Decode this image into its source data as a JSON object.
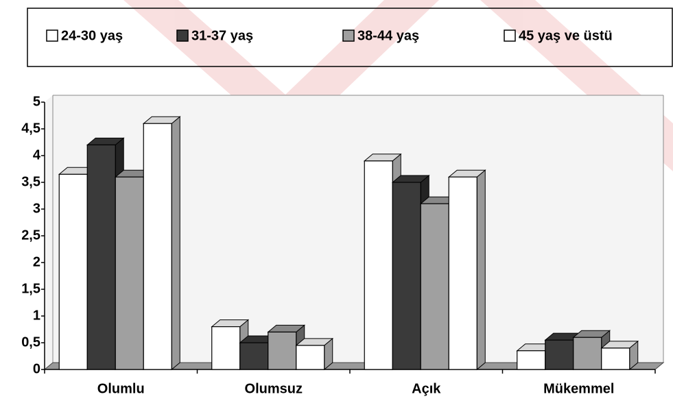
{
  "chart_data": {
    "type": "bar3d",
    "categories": [
      "Olumlu",
      "Olumsuz",
      "Açık",
      "Mükemmel"
    ],
    "series": [
      {
        "name": "24-30 yaş",
        "color": "#ffffff",
        "values": [
          3.65,
          0.8,
          3.9,
          0.35
        ]
      },
      {
        "name": "31-37 yaş",
        "color": "#3a3a3a",
        "values": [
          4.2,
          0.5,
          3.5,
          0.55
        ]
      },
      {
        "name": "38-44 yaş",
        "color": "#a0a0a0",
        "values": [
          3.6,
          0.7,
          3.1,
          0.6
        ]
      },
      {
        "name": "45 yaş ve üstü",
        "color": "#ffffff",
        "values": [
          4.6,
          0.45,
          3.6,
          0.4
        ]
      }
    ],
    "ylim": [
      0,
      5
    ],
    "yticks": [
      0,
      {
        "value": 0.5,
        "label": "0,5"
      },
      1,
      {
        "value": 1.5,
        "label": "1,5"
      },
      2,
      {
        "value": 2.5,
        "label": "2,5"
      },
      3,
      {
        "value": 3.5,
        "label": "3,5"
      },
      4,
      {
        "value": 4.5,
        "label": "4,5"
      },
      5
    ],
    "legend": "top"
  }
}
